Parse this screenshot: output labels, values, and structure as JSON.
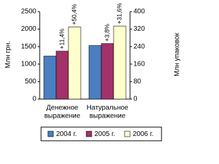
{
  "chart_data": {
    "type": "bar",
    "y_label": "Млн грн.",
    "y2_label": "Млн упаковок",
    "categories": [
      [
        "Денежное",
        "выражение"
      ],
      [
        "Натуральное",
        "выражение"
      ]
    ],
    "category_axis": [
      "y",
      "y2"
    ],
    "series": [
      {
        "name": "2004 г.",
        "color": "#4a7fc1",
        "values": [
          1230,
          245
        ]
      },
      {
        "name": "2005 г.",
        "color": "#a3316a",
        "values": [
          1370,
          254
        ],
        "change_labels": [
          "+11,4%",
          "+3,8%"
        ]
      },
      {
        "name": "2006 г.",
        "color": "#ffffcc",
        "values": [
          2060,
          334
        ],
        "change_labels": [
          "+50,4%",
          "+31,6%"
        ]
      }
    ],
    "ylim": [
      0,
      2500
    ],
    "yticks": [
      0,
      500,
      1000,
      1500,
      2000,
      2500
    ],
    "y2lim": [
      0,
      400
    ],
    "y2ticks": [
      0,
      80,
      160,
      240,
      320,
      400
    ],
    "grid": false,
    "legend": "bottom"
  }
}
